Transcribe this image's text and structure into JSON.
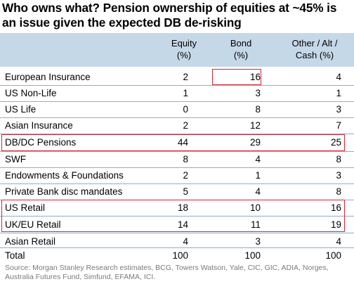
{
  "title": "Who owns what? Pension ownership of equities at ~45% is an issue given the expected DB de-risking",
  "headers": {
    "equity": [
      "Equity",
      "(%)"
    ],
    "bond": [
      "Bond",
      "(%)"
    ],
    "other": [
      "Other / Alt /",
      "Cash (%)"
    ]
  },
  "chart_data": {
    "type": "table",
    "columns": [
      "Equity (%)",
      "Bond (%)",
      "Other / Alt / Cash (%)"
    ],
    "rows": [
      {
        "label": "European Insurance",
        "values": [
          "2",
          "16",
          "4"
        ]
      },
      {
        "label": "US Non-Life",
        "values": [
          "1",
          "3",
          "1"
        ]
      },
      {
        "label": "US Life",
        "values": [
          "0",
          "8",
          "3"
        ]
      },
      {
        "label": "Asian Insurance",
        "values": [
          "2",
          "12",
          "7"
        ]
      },
      {
        "label": "DB/DC Pensions",
        "values": [
          "44",
          "29",
          "25"
        ]
      },
      {
        "label": "SWF",
        "values": [
          "8",
          "4",
          "8"
        ]
      },
      {
        "label": "Endowments & Foundations",
        "values": [
          "2",
          "1",
          "3"
        ]
      },
      {
        "label": "Private Bank disc mandates",
        "values": [
          "5",
          "4",
          "8"
        ]
      },
      {
        "label": "US Retail",
        "values": [
          "18",
          "10",
          "16"
        ]
      },
      {
        "label": "UK/EU Retail",
        "values": [
          "14",
          "11",
          "19"
        ]
      },
      {
        "label": "Asian Retail",
        "values": [
          "4",
          "3",
          "4"
        ]
      },
      {
        "label": "Total",
        "values": [
          "100",
          "100",
          "100"
        ]
      }
    ]
  },
  "source": "Source: Morgan Stanley Research estimates, BCG, Towers Watson, Yale, CIC, GIC, ADIA, Norges, Australia Futures Fund, Simfund, EFAMA, ICI.",
  "highlight_color": "#d0283a",
  "header_color": "#c5d8e8"
}
